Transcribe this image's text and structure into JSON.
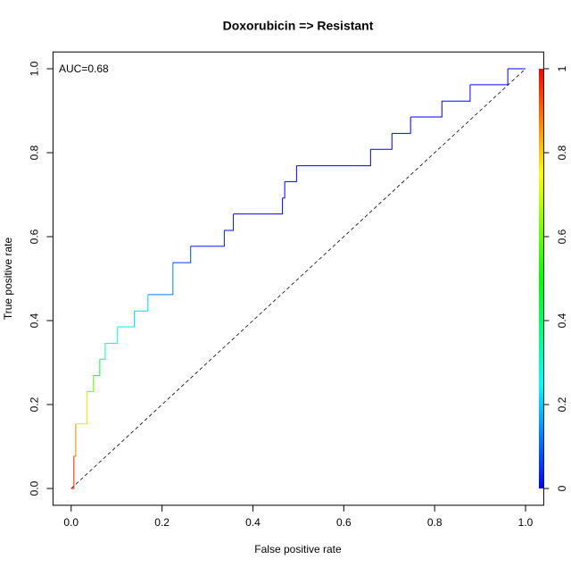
{
  "chart_data": {
    "type": "roc",
    "title": "Doxorubicin => Resistant",
    "xlabel": "False positive rate",
    "ylabel": "True positive rate",
    "annotation": "AUC=0.68",
    "x": [
      0,
      0.006,
      0.01,
      0.035,
      0.049,
      0.063,
      0.075,
      0.102,
      0.139,
      0.169,
      0.224,
      0.263,
      0.337,
      0.357,
      0.465,
      0.47,
      0.496,
      0.659,
      0.706,
      0.747,
      0.816,
      0.878,
      0.961,
      1.0
    ],
    "values": [
      0,
      0.077,
      0.154,
      0.231,
      0.269,
      0.308,
      0.346,
      0.385,
      0.423,
      0.462,
      0.538,
      0.577,
      0.615,
      0.654,
      0.692,
      0.731,
      0.769,
      0.808,
      0.846,
      0.885,
      0.923,
      0.962,
      1.0,
      1.0
    ],
    "colors": [
      "#ff0000",
      "#ff2000",
      "#ff8000",
      "#c0ff00",
      "#60ff00",
      "#00ff40",
      "#00ffa0",
      "#00ffe0",
      "#00e8ff",
      "#00d0ff",
      "#0080ff",
      "#0040ff",
      "#0020ff",
      "#0010ff",
      "#0008ff",
      "#0000ff",
      "#0000ff",
      "#0000ff",
      "#0000ff",
      "#0000ff",
      "#0000ff",
      "#0000ff",
      "#0000ff",
      "#0000ff"
    ],
    "xlim": [
      -0.04,
      1.04
    ],
    "ylim": [
      -0.04,
      1.04
    ],
    "xticks": [
      {
        "value": 0,
        "label": "0.0"
      },
      0.2,
      0.4,
      0.6,
      0.8,
      {
        "value": 1,
        "label": "1.0"
      }
    ],
    "yticks": [
      {
        "value": 0,
        "label": "0.0"
      },
      0.2,
      0.4,
      0.6,
      0.8,
      {
        "value": 1,
        "label": "1.0"
      }
    ],
    "colorbar": {
      "lim": [
        0,
        1
      ],
      "ticks": [
        0,
        0.2,
        0.4,
        0.6,
        0.8,
        1
      ],
      "colors": [
        "#0000ff",
        "#00ffff",
        "#00ff00",
        "#ffff00",
        "#ff0000"
      ]
    }
  }
}
